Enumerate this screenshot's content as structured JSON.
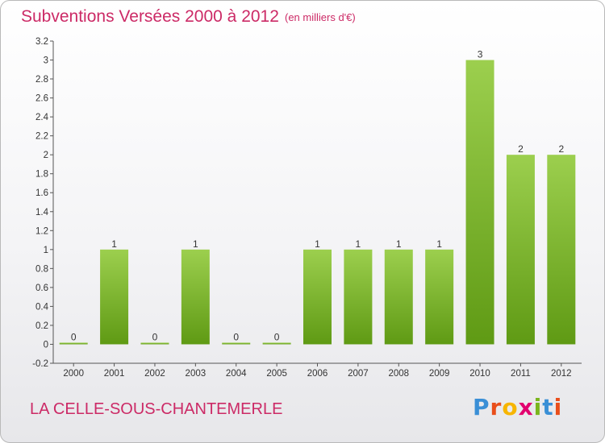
{
  "header": {
    "title": "Subventions Versées 2000 à 2012",
    "subtitle": "(en milliers d'€)"
  },
  "footer": {
    "commune": "LA CELLE-SOUS-CHANTEMERLE",
    "logo_letters": [
      "P",
      "r",
      "o",
      "x",
      "i",
      "t",
      "i"
    ],
    "logo_colors": [
      "#3a8fd6",
      "#e94e1b",
      "#f7b500",
      "#e2006f",
      "#7ab51d",
      "#3a8fd6",
      "#e94e1b"
    ]
  },
  "colors": {
    "bar_light": "#9ccf4e",
    "bar_dark": "#5f9a14",
    "axis": "#555555",
    "title": "#cc2a66"
  },
  "chart_data": {
    "type": "bar",
    "categories": [
      "2000",
      "2001",
      "2002",
      "2003",
      "2004",
      "2005",
      "2006",
      "2007",
      "2008",
      "2009",
      "2010",
      "2011",
      "2012"
    ],
    "values": [
      0,
      1,
      0,
      1,
      0,
      0,
      1,
      1,
      1,
      1,
      3,
      2,
      2
    ],
    "value_labels": [
      "0",
      "1",
      "0",
      "1",
      "0",
      "0",
      "1",
      "1",
      "1",
      "1",
      "3",
      "2",
      "2"
    ],
    "ylim": [
      -0.2,
      3.2
    ],
    "yticks": [
      "-0.2",
      "0",
      "0.2",
      "0.4",
      "0.6",
      "0.8",
      "1",
      "1.2",
      "1.4",
      "1.6",
      "1.8",
      "2",
      "2.2",
      "2.4",
      "2.6",
      "2.8",
      "3",
      "3.2"
    ],
    "ytick_values": [
      -0.2,
      0,
      0.2,
      0.4,
      0.6,
      0.8,
      1,
      1.2,
      1.4,
      1.6,
      1.8,
      2,
      2.2,
      2.4,
      2.6,
      2.8,
      3,
      3.2
    ],
    "title": "Subventions Versées 2000 à 2012",
    "xlabel": "",
    "ylabel": "",
    "grid": false
  }
}
